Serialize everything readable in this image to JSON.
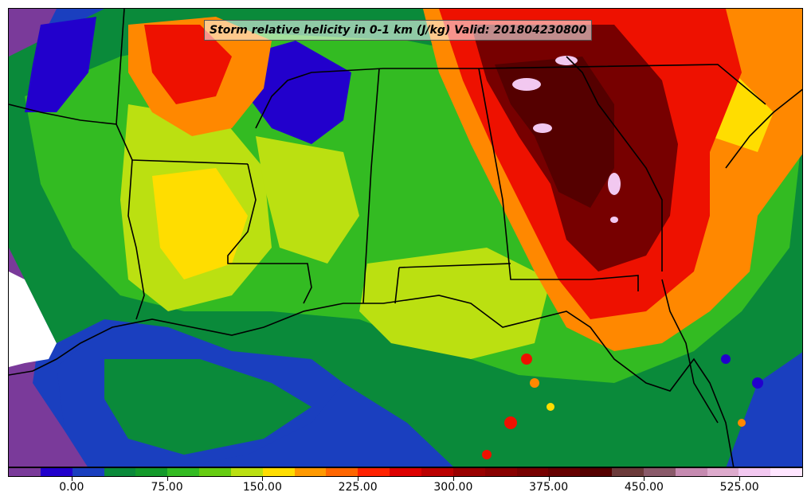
{
  "title": "Storm relative helicity in 0-1 km (J/kg) Valid: 201804230800",
  "colorbar": {
    "colors": [
      "#7a3a9a",
      "#2200cc",
      "#1a3fbf",
      "#0a8a3a",
      "#139a2a",
      "#33bb22",
      "#66cc11",
      "#bbe011",
      "#ffdd00",
      "#ff9900",
      "#ff6600",
      "#ff2200",
      "#dd0000",
      "#bb0000",
      "#990000",
      "#880000",
      "#770000",
      "#660000",
      "#550000",
      "#6b3a3a",
      "#8a5a6a",
      "#c58ab0",
      "#ddaacc",
      "#f2c8f0",
      "#ffe6ff"
    ],
    "tick_labels": [
      "0.00",
      "75.00",
      "150.00",
      "225.00",
      "300.00",
      "375.00",
      "450.00",
      "525.00"
    ]
  },
  "palette": {
    "ocean_deep": "#1a3fbf",
    "ocean_light": "#2a5ad4",
    "green_dark": "#0a8a3a",
    "green": "#33bb22",
    "lime": "#bbe011",
    "yellow": "#ffdd00",
    "orange": "#ff8800",
    "red": "#ee1100",
    "dark_red": "#770000",
    "maroon": "#550000",
    "purple": "#7a3a9a",
    "pink": "#f2c8f0"
  }
}
